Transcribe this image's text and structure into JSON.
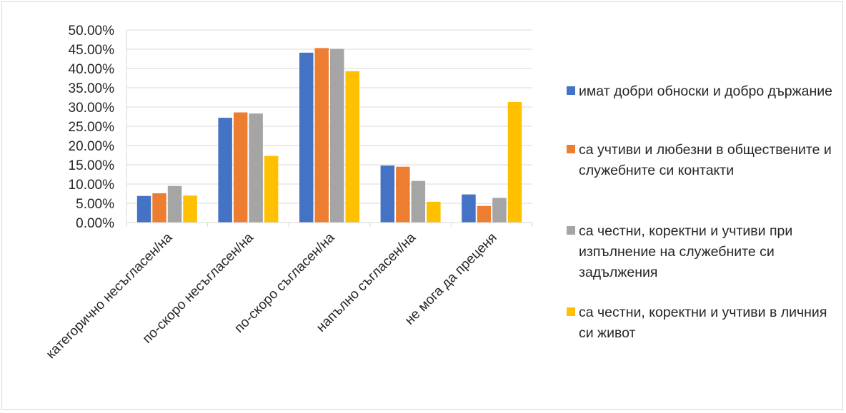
{
  "chart_data": {
    "type": "bar",
    "title": "",
    "xlabel": "",
    "ylabel": "",
    "ylim": [
      0,
      0.5
    ],
    "y_tick_step": 0.05,
    "y_tick_labels": [
      "0.00%",
      "5.00%",
      "10.00%",
      "15.00%",
      "20.00%",
      "25.00%",
      "30.00%",
      "35.00%",
      "40.00%",
      "45.00%",
      "50.00%"
    ],
    "grid": true,
    "legend_position": "right",
    "categories": [
      "категорично несъгласен/на",
      "по-скоро несъгласен/на",
      "по-скоро съгласен/на",
      "напълно съгласен/на",
      "не мога да преценя"
    ],
    "series": [
      {
        "name": "имат  добри обноски и добро държание",
        "color": "#4472c4",
        "values": [
          0.069,
          0.272,
          0.441,
          0.148,
          0.073
        ]
      },
      {
        "name": "са учтиви и любезни в обществените и служебните си контакти",
        "color": "#ed7d31",
        "values": [
          0.076,
          0.286,
          0.453,
          0.145,
          0.043
        ]
      },
      {
        "name": "са честни, коректни и учтиви при изпълнение на служебните си задължения",
        "color": "#a5a5a5",
        "values": [
          0.095,
          0.283,
          0.451,
          0.108,
          0.064
        ]
      },
      {
        "name": "са честни, коректни и учтиви в личния си живот",
        "color": "#ffc000",
        "values": [
          0.07,
          0.173,
          0.393,
          0.054,
          0.313
        ]
      }
    ]
  }
}
